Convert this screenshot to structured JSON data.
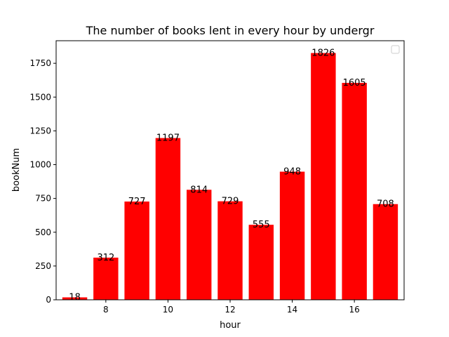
{
  "chart_data": {
    "type": "bar",
    "title": "The number of books lent in every hour by undergr",
    "xlabel": "hour",
    "ylabel": "bookNum",
    "x": [
      7,
      8,
      9,
      10,
      11,
      12,
      13,
      14,
      15,
      16,
      17
    ],
    "values": [
      18,
      312,
      727,
      1197,
      814,
      729,
      555,
      948,
      1826,
      1605,
      708
    ],
    "data_labels": [
      "18",
      "312",
      "727",
      "1197",
      "814",
      "729",
      "555",
      "948",
      "1826",
      "1605",
      "708"
    ],
    "xlim": [
      6.4,
      17.6
    ],
    "ylim": [
      0,
      1917
    ],
    "xticks": [
      8,
      10,
      12,
      14,
      16
    ],
    "xtick_labels": [
      "8",
      "10",
      "12",
      "14",
      "16"
    ],
    "yticks": [
      0,
      250,
      500,
      750,
      1000,
      1250,
      1500,
      1750
    ],
    "ytick_labels": [
      "0",
      "250",
      "500",
      "750",
      "1000",
      "1250",
      "1500",
      "1750"
    ],
    "bar_width": 0.8,
    "bar_color": "#ff0000",
    "grid": false,
    "legend_placement": "top-right",
    "legend_entries": []
  }
}
